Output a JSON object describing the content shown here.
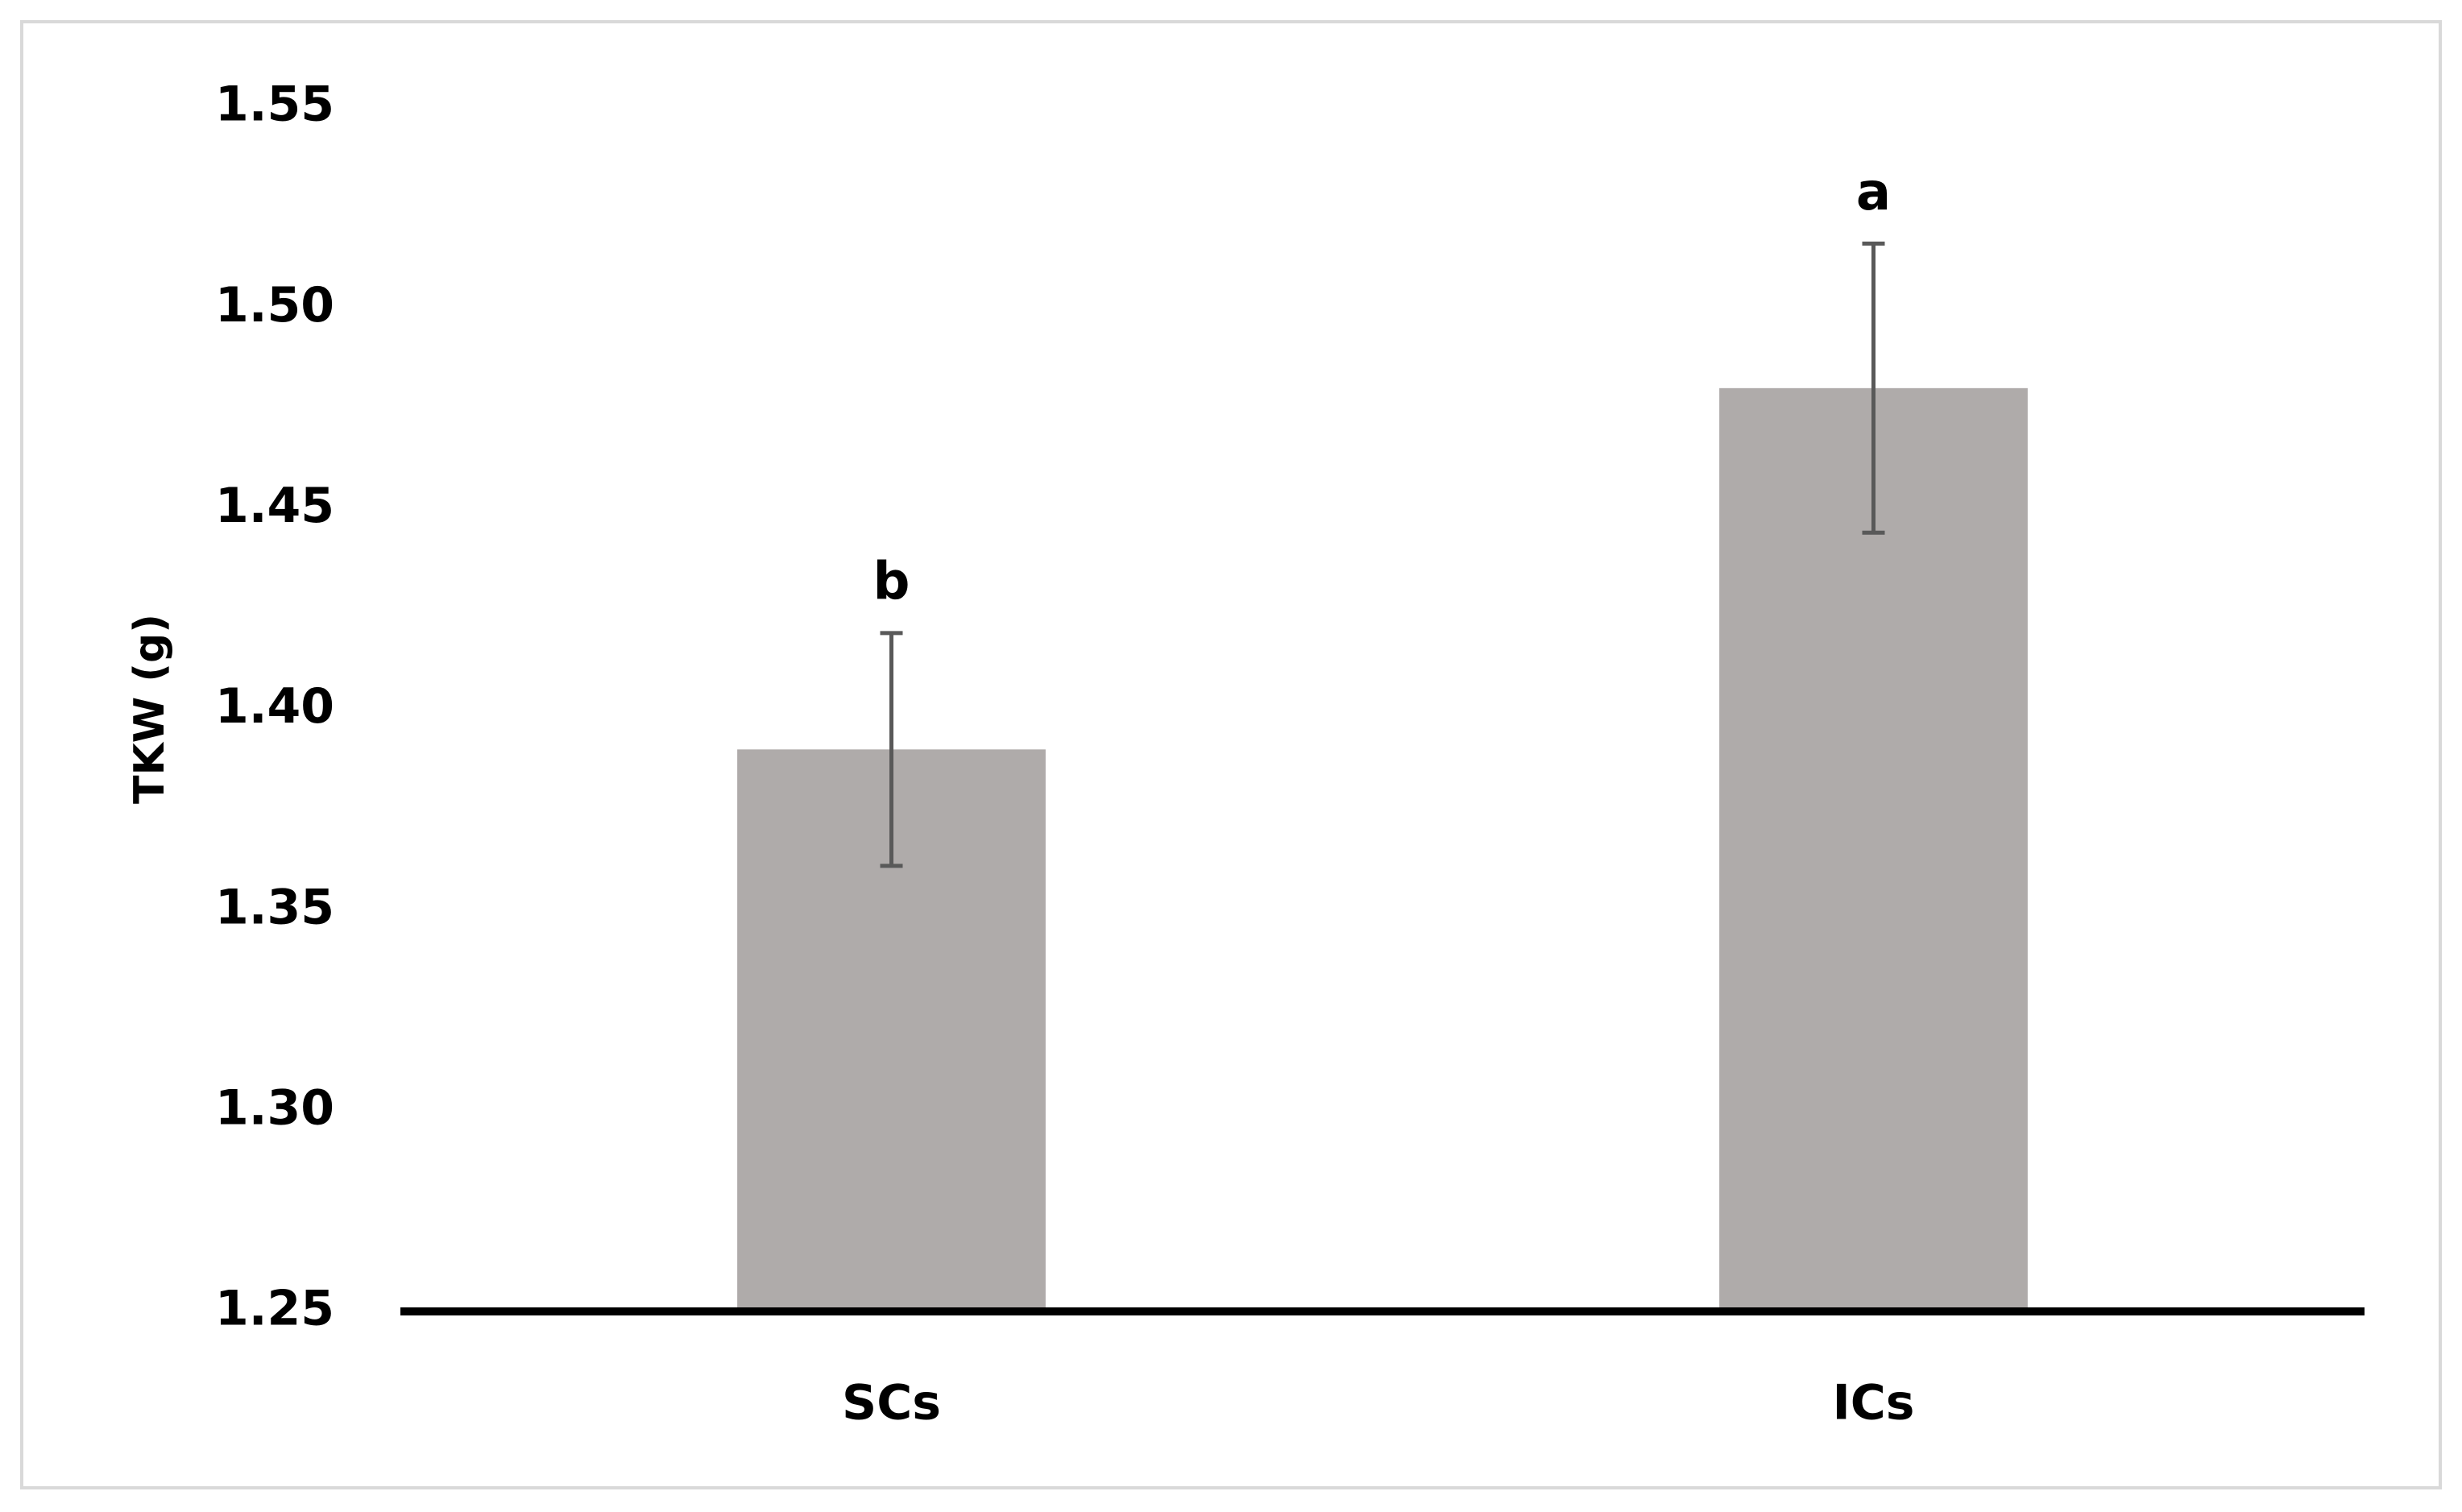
{
  "chart_data": {
    "type": "bar",
    "y_label": "TKW (g)",
    "categories": [
      "SCs",
      "ICs"
    ],
    "values": [
      1.39,
      1.48
    ],
    "errors": [
      0.029,
      0.036
    ],
    "annotations": [
      "b",
      "a"
    ],
    "color": "#afabaa",
    "ylim": [
      1.25,
      1.55
    ],
    "yticks": [
      1.25,
      {
        "value": 1.3,
        "label": "1.30"
      },
      1.35,
      {
        "value": 1.4,
        "label": "1.40"
      },
      1.45,
      {
        "value": 1.5,
        "label": "1.50"
      },
      1.55
    ],
    "grid": false
  }
}
